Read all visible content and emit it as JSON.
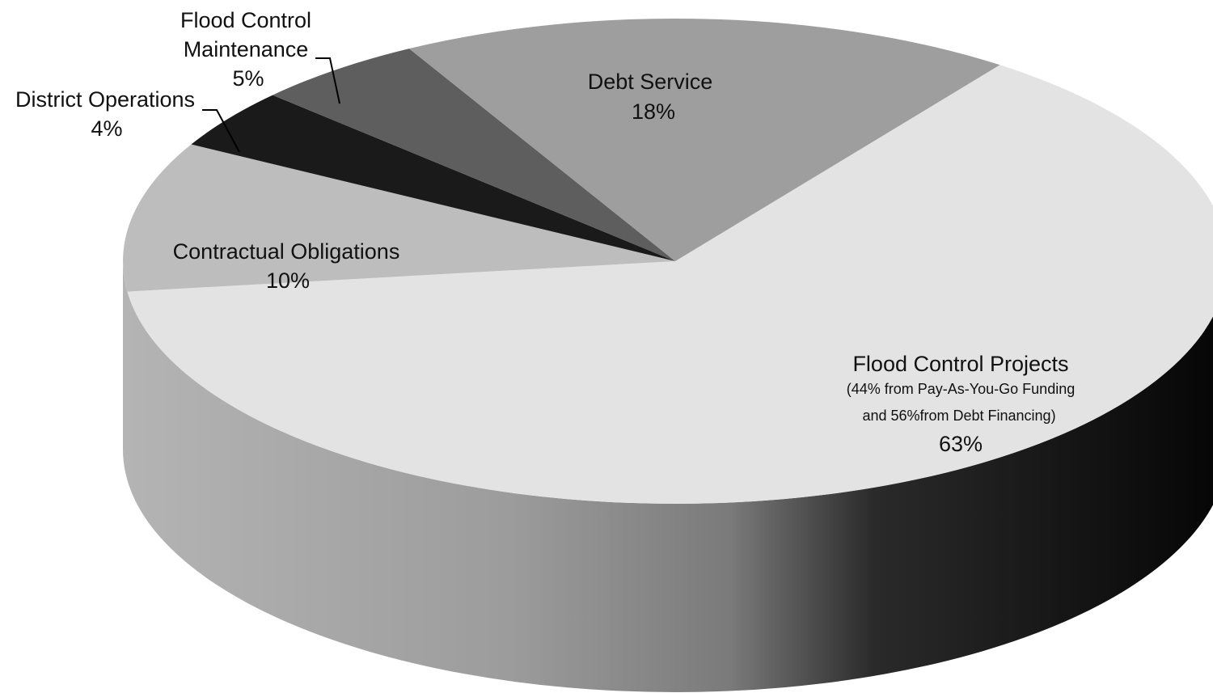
{
  "chart_data": {
    "type": "pie",
    "style": "3d",
    "slices": [
      {
        "label": "Flood Control Projects",
        "note_line1": "(44% from Pay-As-You-Go Funding",
        "note_line2": "and 56%from Debt Financing)",
        "value": 63,
        "value_label": "63%",
        "color": "#e3e3e3"
      },
      {
        "label": "Contractual Obligations",
        "value": 10,
        "value_label": "10%",
        "color": "#bdbdbd"
      },
      {
        "label": "District Operations",
        "value": 4,
        "value_label": "4%",
        "color": "#1a1a1a"
      },
      {
        "label": "Flood Control Maintenance",
        "label_line1": "Flood Control",
        "label_line2": "Maintenance",
        "value": 5,
        "value_label": "5%",
        "color": "#5e5e5e"
      },
      {
        "label": "Debt Service",
        "value": 18,
        "value_label": "18%",
        "color": "#9e9e9e"
      }
    ]
  }
}
